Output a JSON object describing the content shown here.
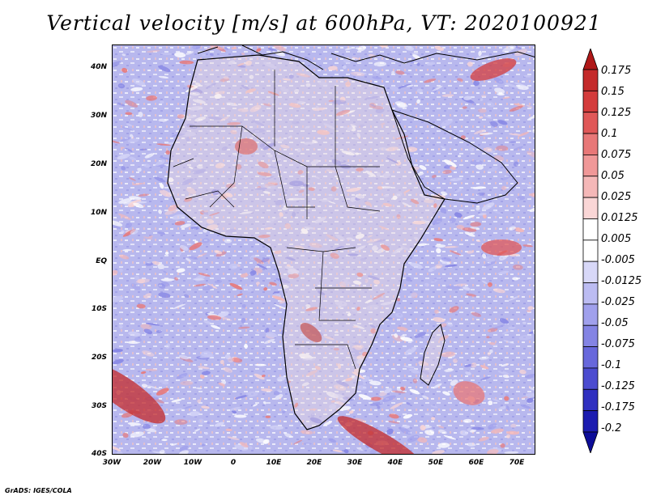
{
  "title": "Vertical velocity [m/s] at 600hPa, VT: 2020100921",
  "credit": "GrADS: IGES/COLA",
  "map": {
    "lat_labels": [
      "40N",
      "30N",
      "20N",
      "10N",
      "EQ",
      "10S",
      "20S",
      "30S",
      "40S"
    ],
    "lon_labels": [
      "30W",
      "20W",
      "10W",
      "0",
      "10E",
      "20E",
      "30E",
      "40E",
      "50E",
      "60E",
      "70E"
    ]
  },
  "colorbar": {
    "labels": [
      "0.175",
      "0.15",
      "0.125",
      "0.1",
      "0.075",
      "0.05",
      "0.025",
      "0.0125",
      "0.005",
      "-0.005",
      "-0.0125",
      "-0.025",
      "-0.05",
      "-0.075",
      "-0.1",
      "-0.125",
      "-0.175",
      "-0.2"
    ],
    "colors": [
      "#b01818",
      "#c42a2a",
      "#d43c3c",
      "#e05858",
      "#e87878",
      "#f09898",
      "#f5b8b8",
      "#fad6d6",
      "#ffffff",
      "#ffffff",
      "#d8d8f8",
      "#bcbcf2",
      "#a0a0ec",
      "#8484e4",
      "#6868dc",
      "#4c4cd0",
      "#3030c0",
      "#1c1cb0",
      "#0c0c98"
    ]
  }
}
